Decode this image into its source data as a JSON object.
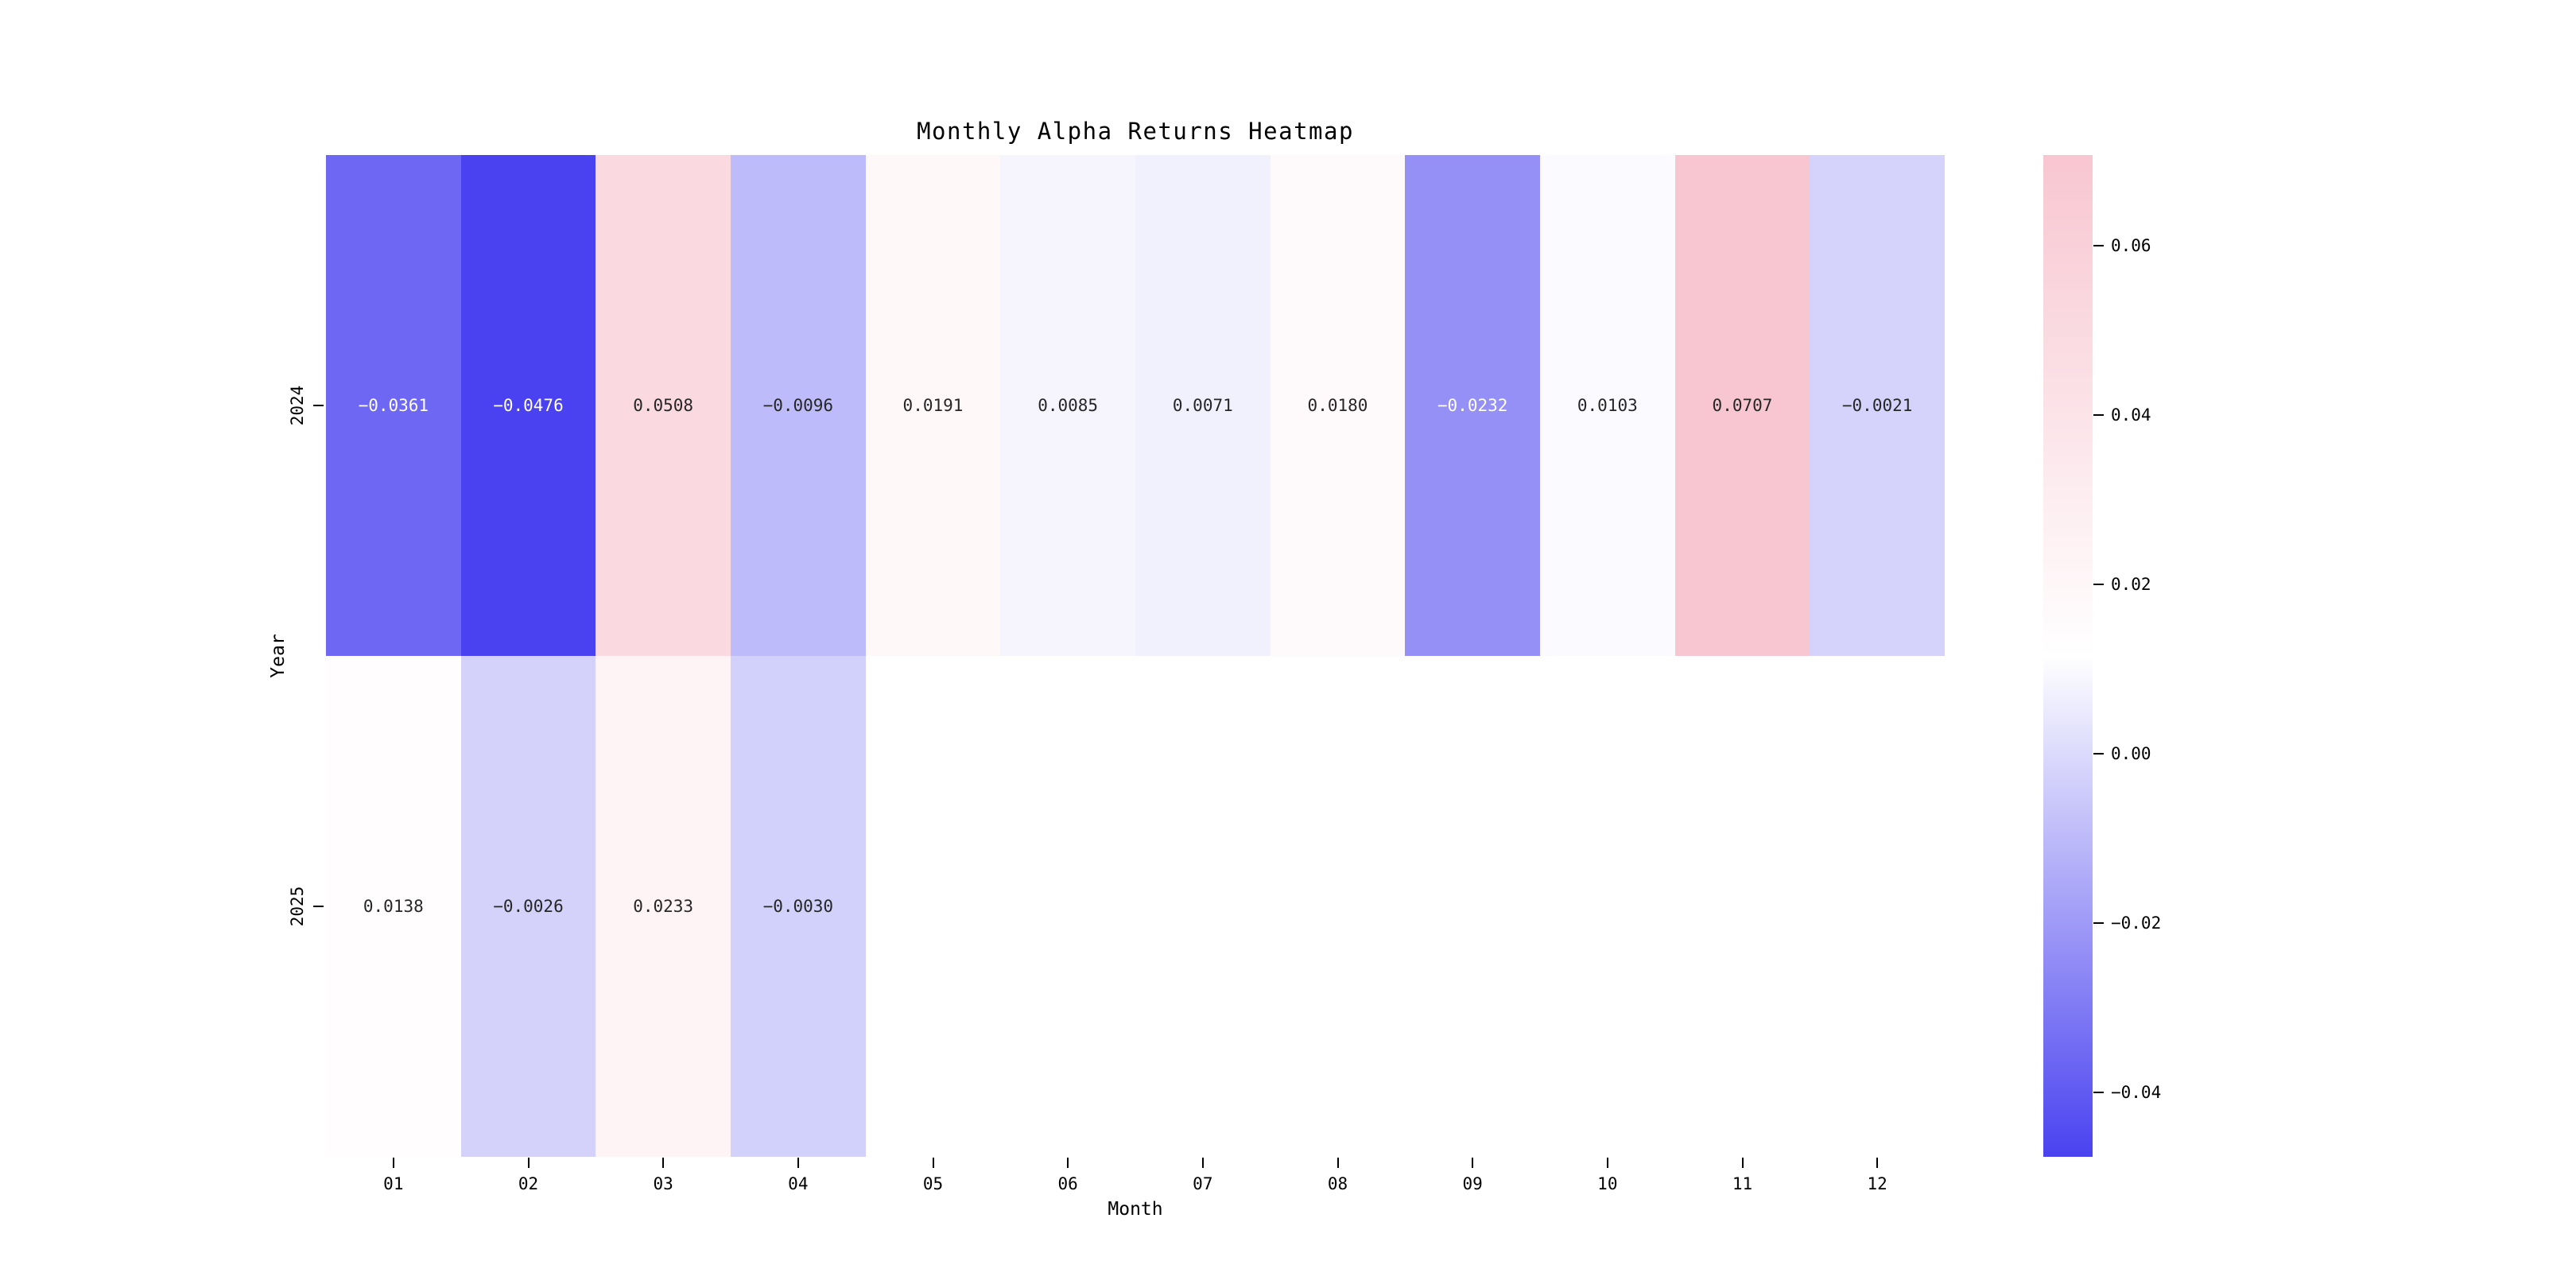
{
  "figure": {
    "background": "#ffffff"
  },
  "chart_data": {
    "type": "heatmap",
    "title": "Monthly Alpha Returns Heatmap",
    "xlabel": "Month",
    "ylabel": "Year",
    "x_categories": [
      "01",
      "02",
      "03",
      "04",
      "05",
      "06",
      "07",
      "08",
      "09",
      "10",
      "11",
      "12"
    ],
    "y_categories": [
      "2024",
      "2025"
    ],
    "series": [
      {
        "name": "2024",
        "values": [
          -0.0361,
          -0.0476,
          0.0508,
          -0.0096,
          0.0191,
          0.0085,
          0.0071,
          0.018,
          -0.0232,
          0.0103,
          0.0707,
          -0.0021
        ]
      },
      {
        "name": "2025",
        "values": [
          0.0138,
          -0.0026,
          0.0233,
          -0.003,
          null,
          null,
          null,
          null,
          null,
          null,
          null,
          null
        ]
      }
    ],
    "vmin": -0.0476,
    "vmax": 0.0707,
    "colorbar_ticks": [
      0.06,
      0.04,
      0.02,
      0.0,
      -0.02,
      -0.04
    ],
    "colormap": {
      "min_color": "#4a42f0",
      "mid_color": "#ffffff",
      "max_color": "#f8c6d1"
    },
    "annotation_decimals": 4,
    "legend_position": "right-colorbar",
    "grid": false
  }
}
